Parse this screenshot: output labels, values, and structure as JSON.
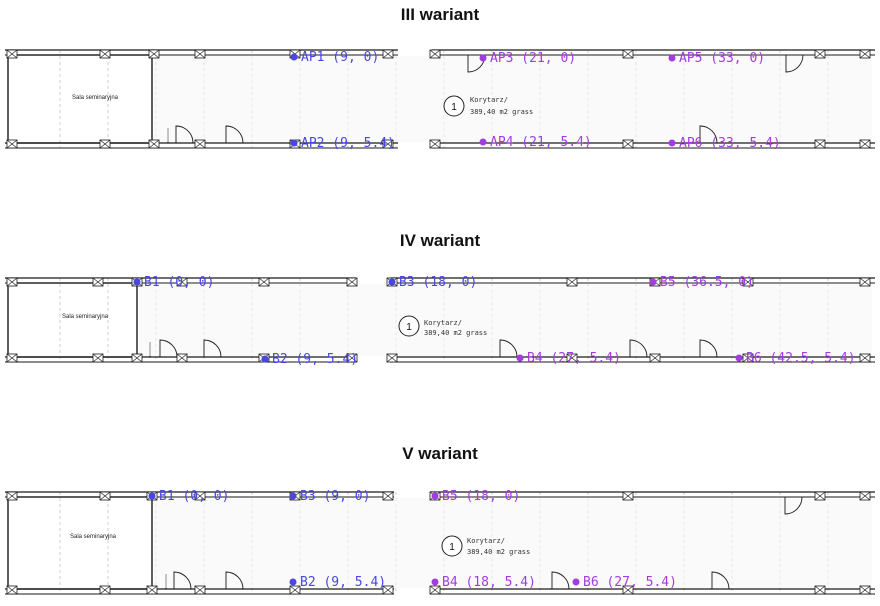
{
  "colors": {
    "blue": "#4a46e6",
    "violet": "#a33ce0",
    "wall": "#1a1a1a",
    "grid": "#bcbcbc"
  },
  "variants": [
    {
      "title": "III wariant",
      "room_label": "Sala seminaryjna",
      "note_number": "1",
      "note_line1": "Korytarz/",
      "note_line2": "389,40 m2 grass",
      "points": [
        {
          "label": "AP1 (9, 0)",
          "color": "blue"
        },
        {
          "label": "AP2 (9, 5.4)",
          "color": "blue"
        },
        {
          "label": "AP3 (21, 0)",
          "color": "violet"
        },
        {
          "label": "AP4 (21, 5.4)",
          "color": "violet"
        },
        {
          "label": "AP5 (33, 0)",
          "color": "violet"
        },
        {
          "label": "AP6 (33, 5.4)",
          "color": "violet"
        }
      ]
    },
    {
      "title": "IV wariant",
      "room_label": "Sala seminaryjna",
      "note_number": "1",
      "note_line1": "Korytarz/",
      "note_line2": "389,40 m2 grass",
      "points": [
        {
          "label": "B1 (0, 0)",
          "color": "blue"
        },
        {
          "label": "B2 (9, 5.4)",
          "color": "blue"
        },
        {
          "label": "B3 (18, 0)",
          "color": "blue"
        },
        {
          "label": "B4 (27, 5.4)",
          "color": "violet"
        },
        {
          "label": "B5 (36.5, 0)",
          "color": "violet"
        },
        {
          "label": "B6 (42.5, 5.4)",
          "color": "violet"
        }
      ]
    },
    {
      "title": "V wariant",
      "room_label": "Sala seminaryjna",
      "note_number": "1",
      "note_line1": "Korytarz/",
      "note_line2": "389,40 m2 grass",
      "points": [
        {
          "label": "B1 (0, 0)",
          "color": "blue"
        },
        {
          "label": "B2 (9, 5.4)",
          "color": "blue"
        },
        {
          "label": "B3 (9, 0)",
          "color": "blue"
        },
        {
          "label": "B4 (18, 5.4)",
          "color": "violet"
        },
        {
          "label": "B5 (18, 0)",
          "color": "violet"
        },
        {
          "label": "B6 (27, 5.4)",
          "color": "violet"
        }
      ]
    }
  ]
}
